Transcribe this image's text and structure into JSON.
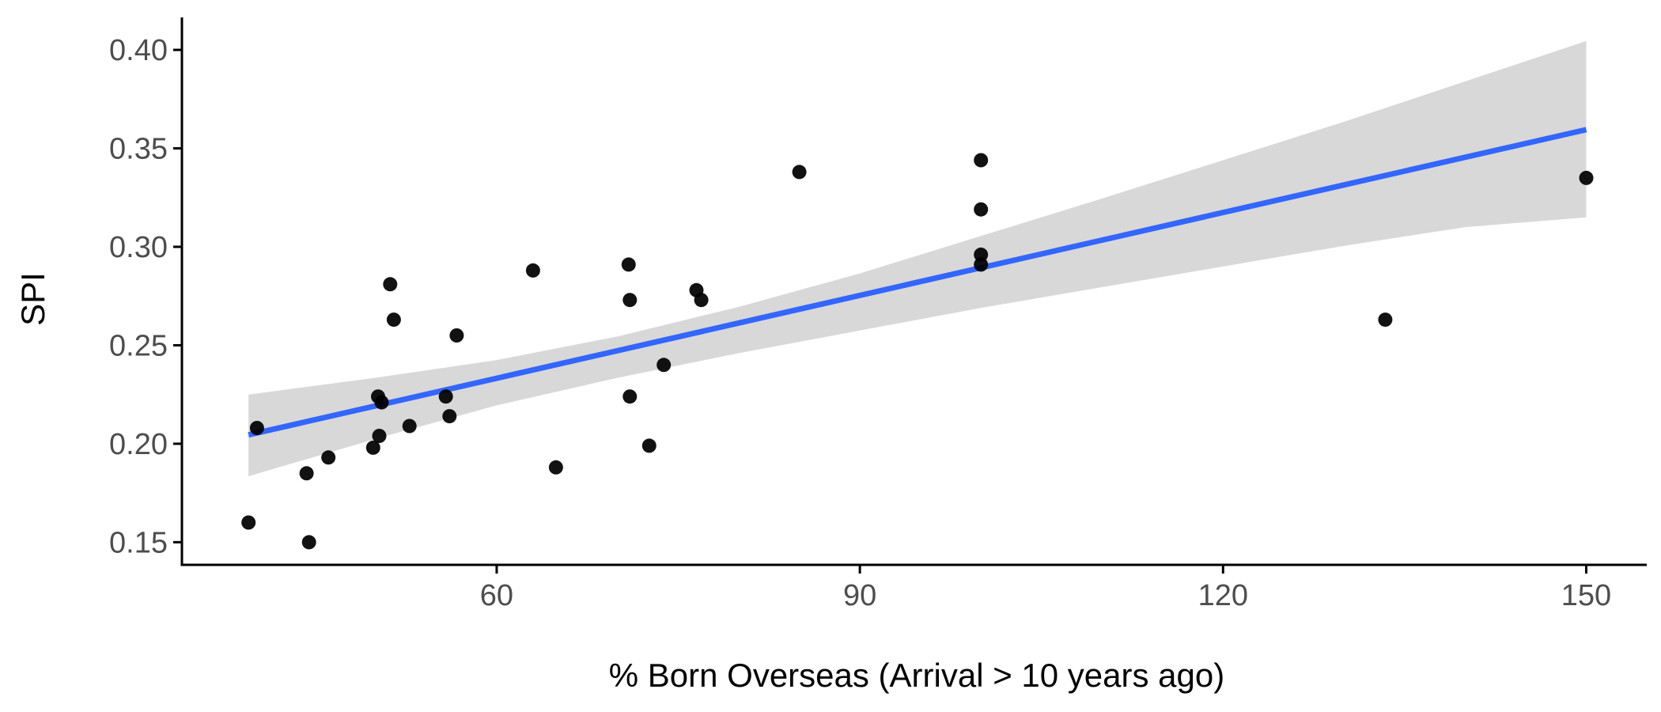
{
  "chart_data": {
    "type": "scatter",
    "title": "",
    "xlabel": "% Born Overseas (Arrival > 10 years ago)",
    "ylabel": "SPI",
    "xlim": [
      34,
      155
    ],
    "ylim": [
      0.1385,
      0.4165
    ],
    "x_ticks": [
      60,
      90,
      120,
      150
    ],
    "x_tick_labels": [
      "60",
      "90",
      "120",
      "150"
    ],
    "y_ticks": [
      0.15,
      0.2,
      0.25,
      0.3,
      0.35,
      0.4
    ],
    "y_tick_labels": [
      "0.15",
      "0.20",
      "0.25",
      "0.30",
      "0.35",
      "0.40"
    ],
    "grid": false,
    "legend": "none",
    "colors": {
      "points": "#000000",
      "fit_line": "#3366ff",
      "ribbon": "#d6d6d6",
      "axis": "#000000",
      "tick_label": "#4d4d4d"
    },
    "points": [
      {
        "x": 39.5,
        "y": 0.16
      },
      {
        "x": 40.2,
        "y": 0.208
      },
      {
        "x": 44.3,
        "y": 0.185
      },
      {
        "x": 44.5,
        "y": 0.15
      },
      {
        "x": 46.1,
        "y": 0.193
      },
      {
        "x": 49.8,
        "y": 0.198
      },
      {
        "x": 50.2,
        "y": 0.224
      },
      {
        "x": 50.3,
        "y": 0.204
      },
      {
        "x": 50.5,
        "y": 0.221
      },
      {
        "x": 51.2,
        "y": 0.281
      },
      {
        "x": 51.5,
        "y": 0.263
      },
      {
        "x": 52.8,
        "y": 0.209
      },
      {
        "x": 55.8,
        "y": 0.224
      },
      {
        "x": 56.1,
        "y": 0.214
      },
      {
        "x": 56.7,
        "y": 0.255
      },
      {
        "x": 63.0,
        "y": 0.288
      },
      {
        "x": 64.9,
        "y": 0.188
      },
      {
        "x": 70.9,
        "y": 0.291
      },
      {
        "x": 71.0,
        "y": 0.273
      },
      {
        "x": 71.0,
        "y": 0.224
      },
      {
        "x": 72.6,
        "y": 0.199
      },
      {
        "x": 73.8,
        "y": 0.24
      },
      {
        "x": 76.5,
        "y": 0.278
      },
      {
        "x": 76.9,
        "y": 0.273
      },
      {
        "x": 85.0,
        "y": 0.338
      },
      {
        "x": 100.0,
        "y": 0.344
      },
      {
        "x": 100.0,
        "y": 0.319
      },
      {
        "x": 100.0,
        "y": 0.296
      },
      {
        "x": 100.0,
        "y": 0.291
      },
      {
        "x": 133.4,
        "y": 0.263
      },
      {
        "x": 150.0,
        "y": 0.335
      }
    ],
    "fit": {
      "x": [
        39.5,
        150.0
      ],
      "y": [
        0.2045,
        0.3595
      ]
    },
    "ribbon": {
      "x": [
        39.5,
        50.0,
        60.0,
        70.0,
        80.0,
        90.0,
        100.0,
        110.0,
        120.0,
        130.0,
        140.0,
        150.0
      ],
      "upper": [
        0.225,
        0.2335,
        0.2425,
        0.2545,
        0.2695,
        0.2865,
        0.3055,
        0.3245,
        0.344,
        0.3635,
        0.384,
        0.4045
      ],
      "lower": [
        0.1835,
        0.2025,
        0.2195,
        0.2335,
        0.246,
        0.2575,
        0.269,
        0.2795,
        0.29,
        0.3005,
        0.31,
        0.315
      ]
    }
  }
}
